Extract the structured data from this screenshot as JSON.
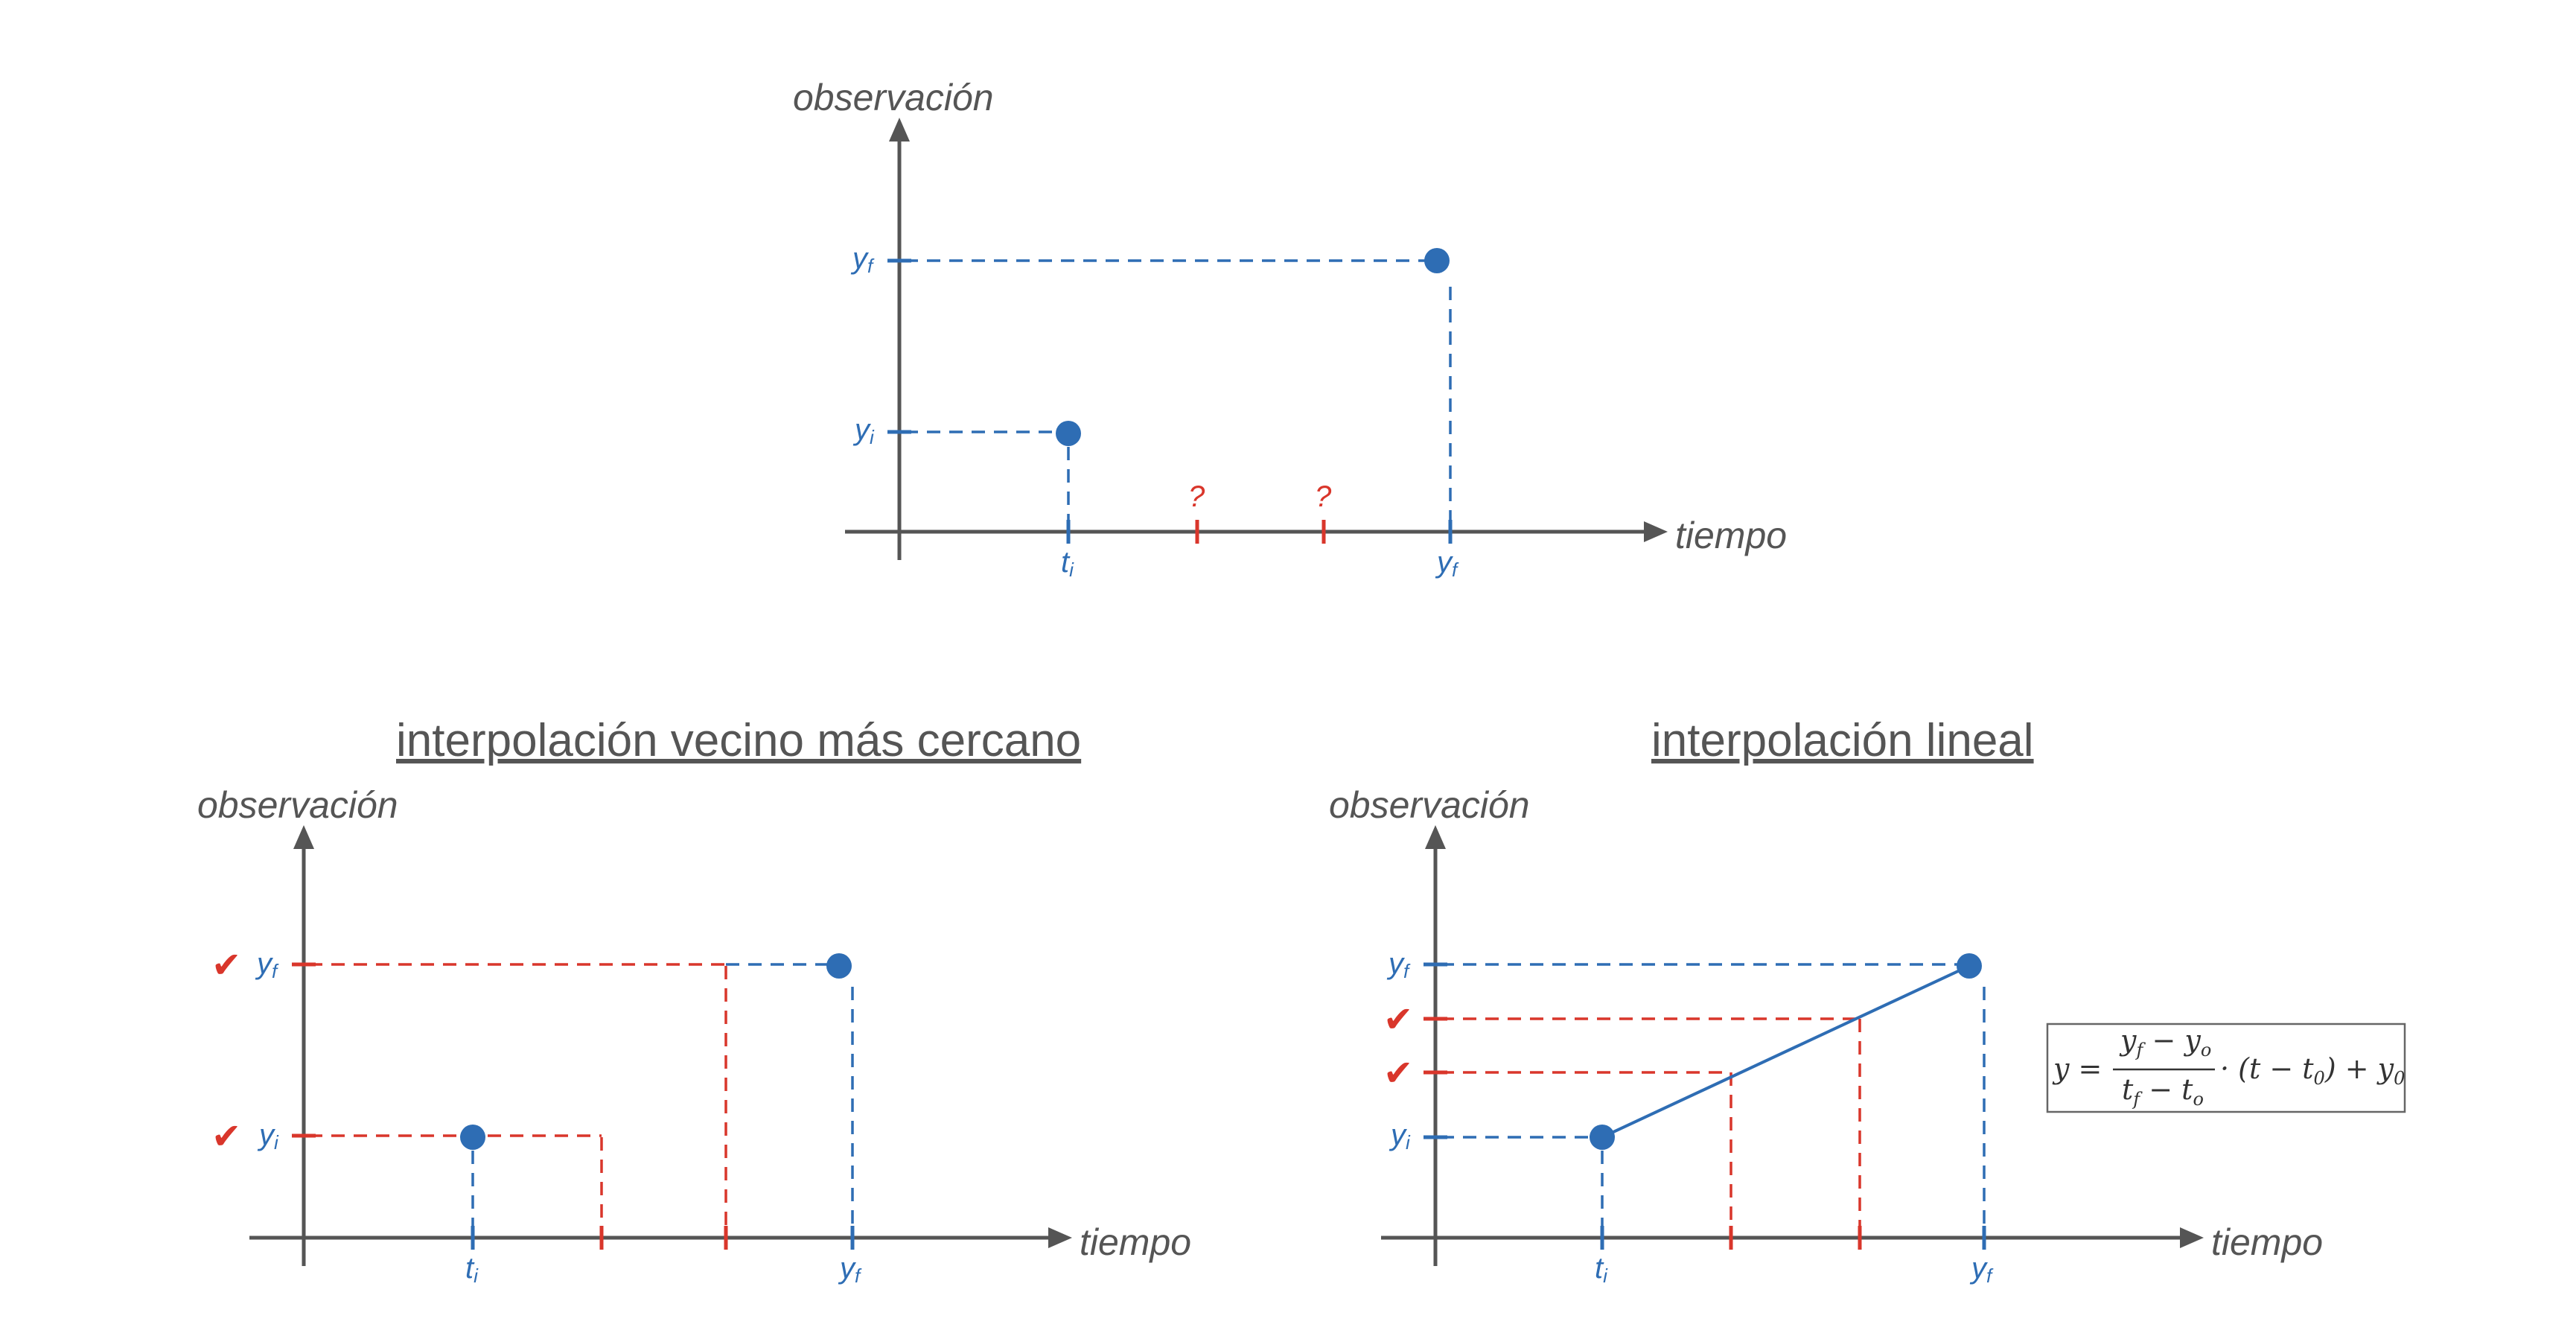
{
  "colors": {
    "blue": "#2E6DB4",
    "red": "#D9362B",
    "axis": "#555555"
  },
  "top": {
    "y_axis_label": "observación",
    "x_axis_label": "tiempo",
    "yf_base": "y",
    "yf_sub": "f",
    "yi_base": "y",
    "yi_sub": "i",
    "xi_base": "t",
    "xi_sub": "i",
    "xf_base": "y",
    "xf_sub": "f",
    "q1": "?",
    "q2": "?"
  },
  "left": {
    "title": "interpolación vecino más cercano",
    "y_axis_label": "observación",
    "x_axis_label": "tiempo",
    "yf_base": "y",
    "yf_sub": "f",
    "yi_base": "y",
    "yi_sub": "i",
    "xi_base": "t",
    "xi_sub": "i",
    "xf_base": "y",
    "xf_sub": "f",
    "check_yf": "✔",
    "check_yi": "✔"
  },
  "right": {
    "title": "interpolación lineal",
    "y_axis_label": "observación",
    "x_axis_label": "tiempo",
    "yf_base": "y",
    "yf_sub": "f",
    "yi_base": "y",
    "yi_sub": "i",
    "xi_base": "t",
    "xi_sub": "i",
    "xf_base": "y",
    "xf_sub": "f",
    "check_1": "✔",
    "check_2": "✔",
    "formula": {
      "lhs": "y =",
      "num": "y",
      "num_sub1": "f",
      "num_mid": " − y",
      "num_sub2": "o",
      "den": "t",
      "den_sub1": "f",
      "den_mid": " − t",
      "den_sub2": "o",
      "tail_a": "· (t − t",
      "tail_sub": "0",
      "tail_b": ") + y",
      "tail_sub2": "0"
    }
  }
}
